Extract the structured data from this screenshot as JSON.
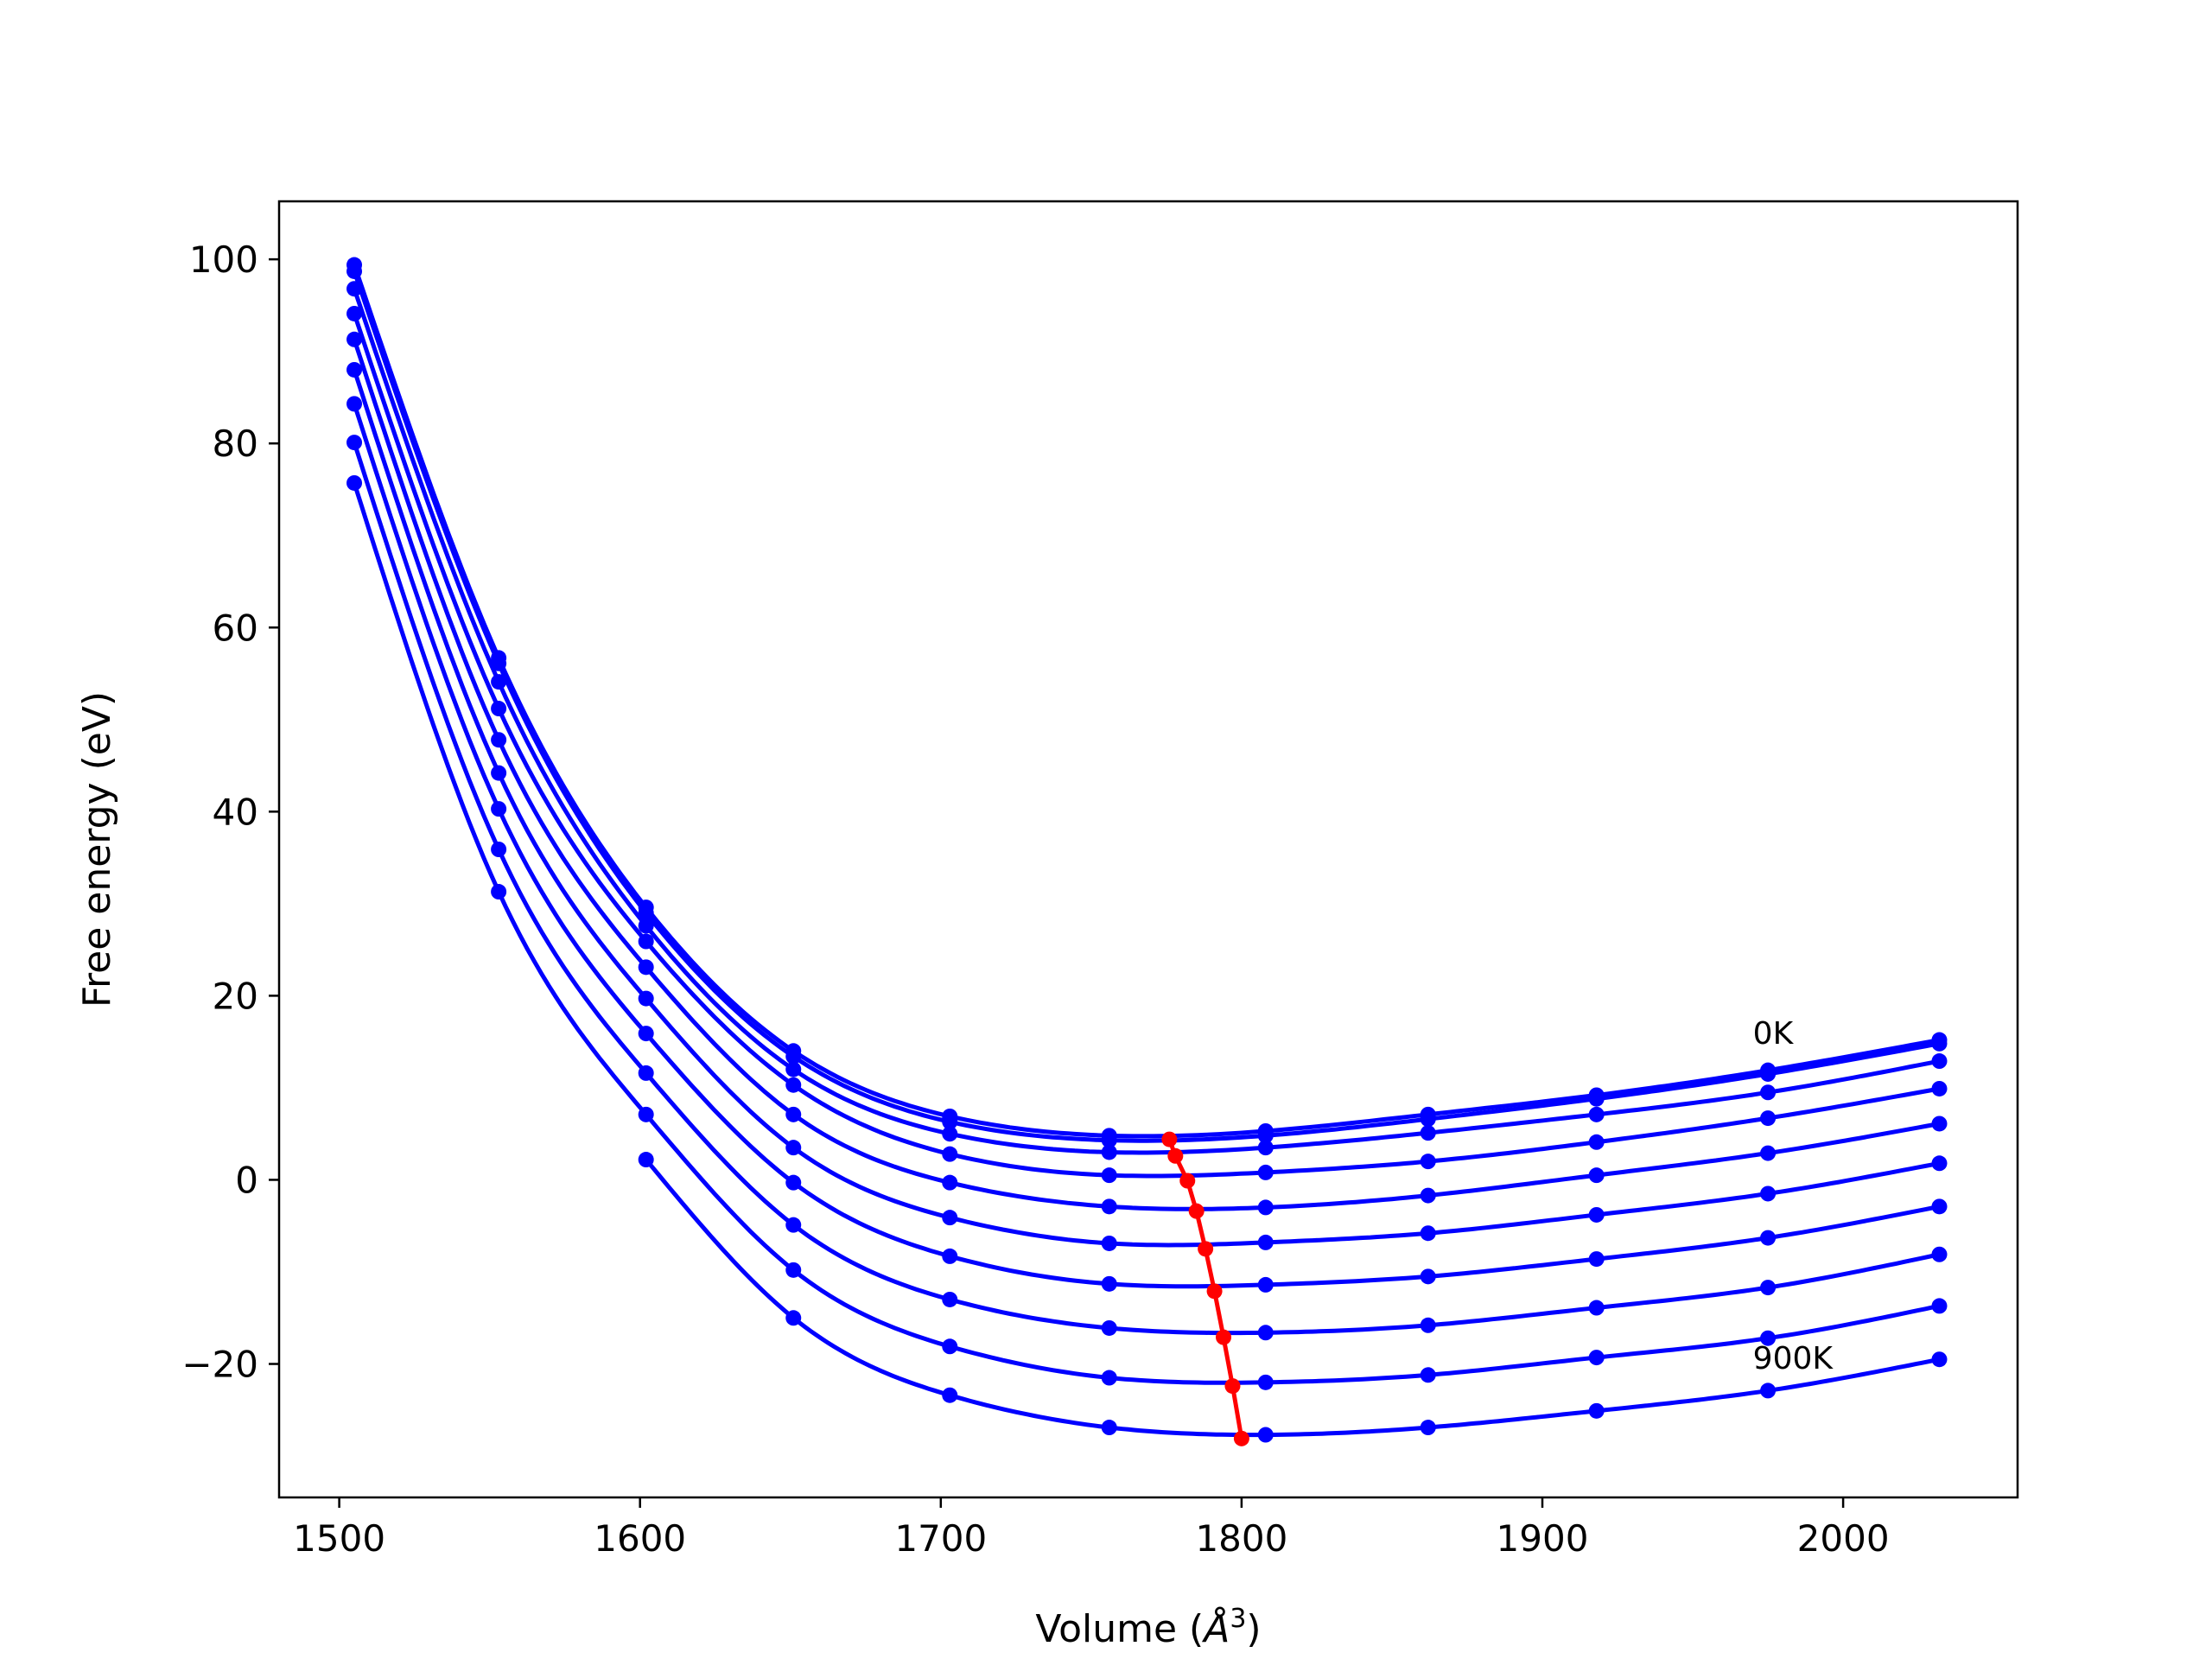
{
  "chart_data": {
    "type": "line",
    "title": "",
    "xlabel": "Volume (Å³)",
    "xlabel_base": "Volume (",
    "xlabel_symbol": "Å",
    "xlabel_sup": "3",
    "xlabel_tail": ")",
    "ylabel": "Free energy (eV)",
    "xlim": [
      1480,
      2058
    ],
    "ylim": [
      -34.5,
      106.3
    ],
    "xticks": [
      1500,
      1600,
      1700,
      1800,
      1900,
      2000
    ],
    "yticks": [
      -20,
      0,
      20,
      40,
      60,
      80,
      100
    ],
    "grid": false,
    "x": [
      1505,
      1553,
      1602,
      1651,
      1703,
      1756,
      1808,
      1862,
      1918,
      1975,
      2032
    ],
    "series": [
      {
        "values": [
          99.4,
          56.7,
          29.6,
          14.0,
          6.9,
          4.8,
          5.3,
          7.1,
          9.2,
          11.9,
          15.2
        ]
      },
      {
        "values": [
          98.7,
          56.1,
          29.0,
          13.4,
          6.3,
          4.3,
          4.8,
          6.6,
          8.8,
          11.5,
          14.8
        ]
      },
      {
        "values": [
          96.8,
          54.1,
          27.6,
          12.0,
          5.0,
          3.0,
          3.5,
          5.1,
          7.1,
          9.5,
          12.9
        ]
      },
      {
        "values": [
          94.1,
          51.2,
          25.9,
          10.3,
          2.8,
          0.5,
          0.8,
          2.0,
          4.1,
          6.7,
          9.9
        ]
      },
      {
        "values": [
          91.3,
          47.8,
          23.1,
          7.1,
          -0.3,
          -2.9,
          -3.0,
          -1.7,
          0.5,
          2.9,
          6.1
        ]
      },
      {
        "values": [
          88.0,
          44.2,
          19.7,
          3.5,
          -4.1,
          -6.9,
          -6.8,
          -5.8,
          -3.8,
          -1.5,
          1.8
        ]
      },
      {
        "values": [
          84.3,
          40.3,
          15.9,
          -0.3,
          -8.3,
          -11.3,
          -11.4,
          -10.5,
          -8.6,
          -6.3,
          -2.9
        ]
      },
      {
        "values": [
          80.1,
          35.9,
          11.6,
          -4.9,
          -13.0,
          -16.1,
          -16.6,
          -15.8,
          -13.9,
          -11.7,
          -8.1
        ]
      },
      {
        "values": [
          75.7,
          31.3,
          7.1,
          -9.8,
          -18.1,
          -21.5,
          -22.0,
          -21.2,
          -19.3,
          -17.2,
          -13.7
        ]
      },
      {
        "values": [
          null,
          null,
          2.2,
          -15.0,
          -23.4,
          -26.9,
          -27.7,
          -26.9,
          -25.1,
          -22.9,
          -19.5
        ]
      }
    ],
    "minima": {
      "x": [
        1776,
        1778,
        1782,
        1785,
        1788,
        1791,
        1794,
        1797,
        1800
      ],
      "y": [
        4.4,
        2.6,
        -0.1,
        -3.4,
        -7.5,
        -12.1,
        -17.1,
        -22.4,
        -28.1
      ]
    },
    "annotations": [
      {
        "text": "0K",
        "x": 1970,
        "y": 14.8
      },
      {
        "text": "900K",
        "x": 1970,
        "y": -20.5
      }
    ],
    "colors": {
      "series": "#0000ff",
      "minima": "#ff0000"
    }
  }
}
